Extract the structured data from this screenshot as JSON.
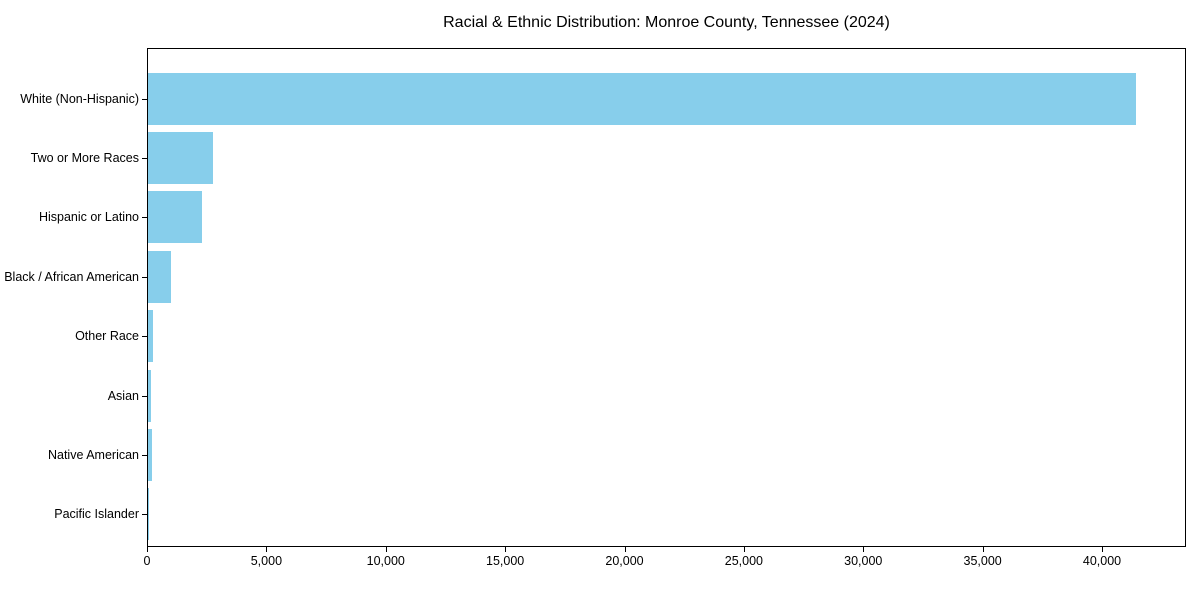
{
  "chart_data": {
    "type": "bar",
    "orientation": "horizontal",
    "title": "Racial & Ethnic Distribution: Monroe County, Tennessee (2024)",
    "categories": [
      "White (Non-Hispanic)",
      "Two or More Races",
      "Hispanic or Latino",
      "Black / African American",
      "Other Race",
      "Asian",
      "Native American",
      "Pacific Islander"
    ],
    "values": [
      41400,
      2730,
      2250,
      970,
      200,
      110,
      150,
      20
    ],
    "xlabel": "",
    "ylabel": "",
    "xlim": [
      0,
      43500
    ],
    "xticks": {
      "values": [
        0,
        5000,
        10000,
        15000,
        20000,
        25000,
        30000,
        35000,
        40000
      ],
      "labels": [
        "0",
        "5,000",
        "10,000",
        "15,000",
        "20,000",
        "25,000",
        "30,000",
        "35,000",
        "40,000"
      ]
    },
    "grid": false,
    "legend": null,
    "bar_color": "#87CEEB",
    "axis_color": "#000000",
    "background_color": "#ffffff"
  }
}
